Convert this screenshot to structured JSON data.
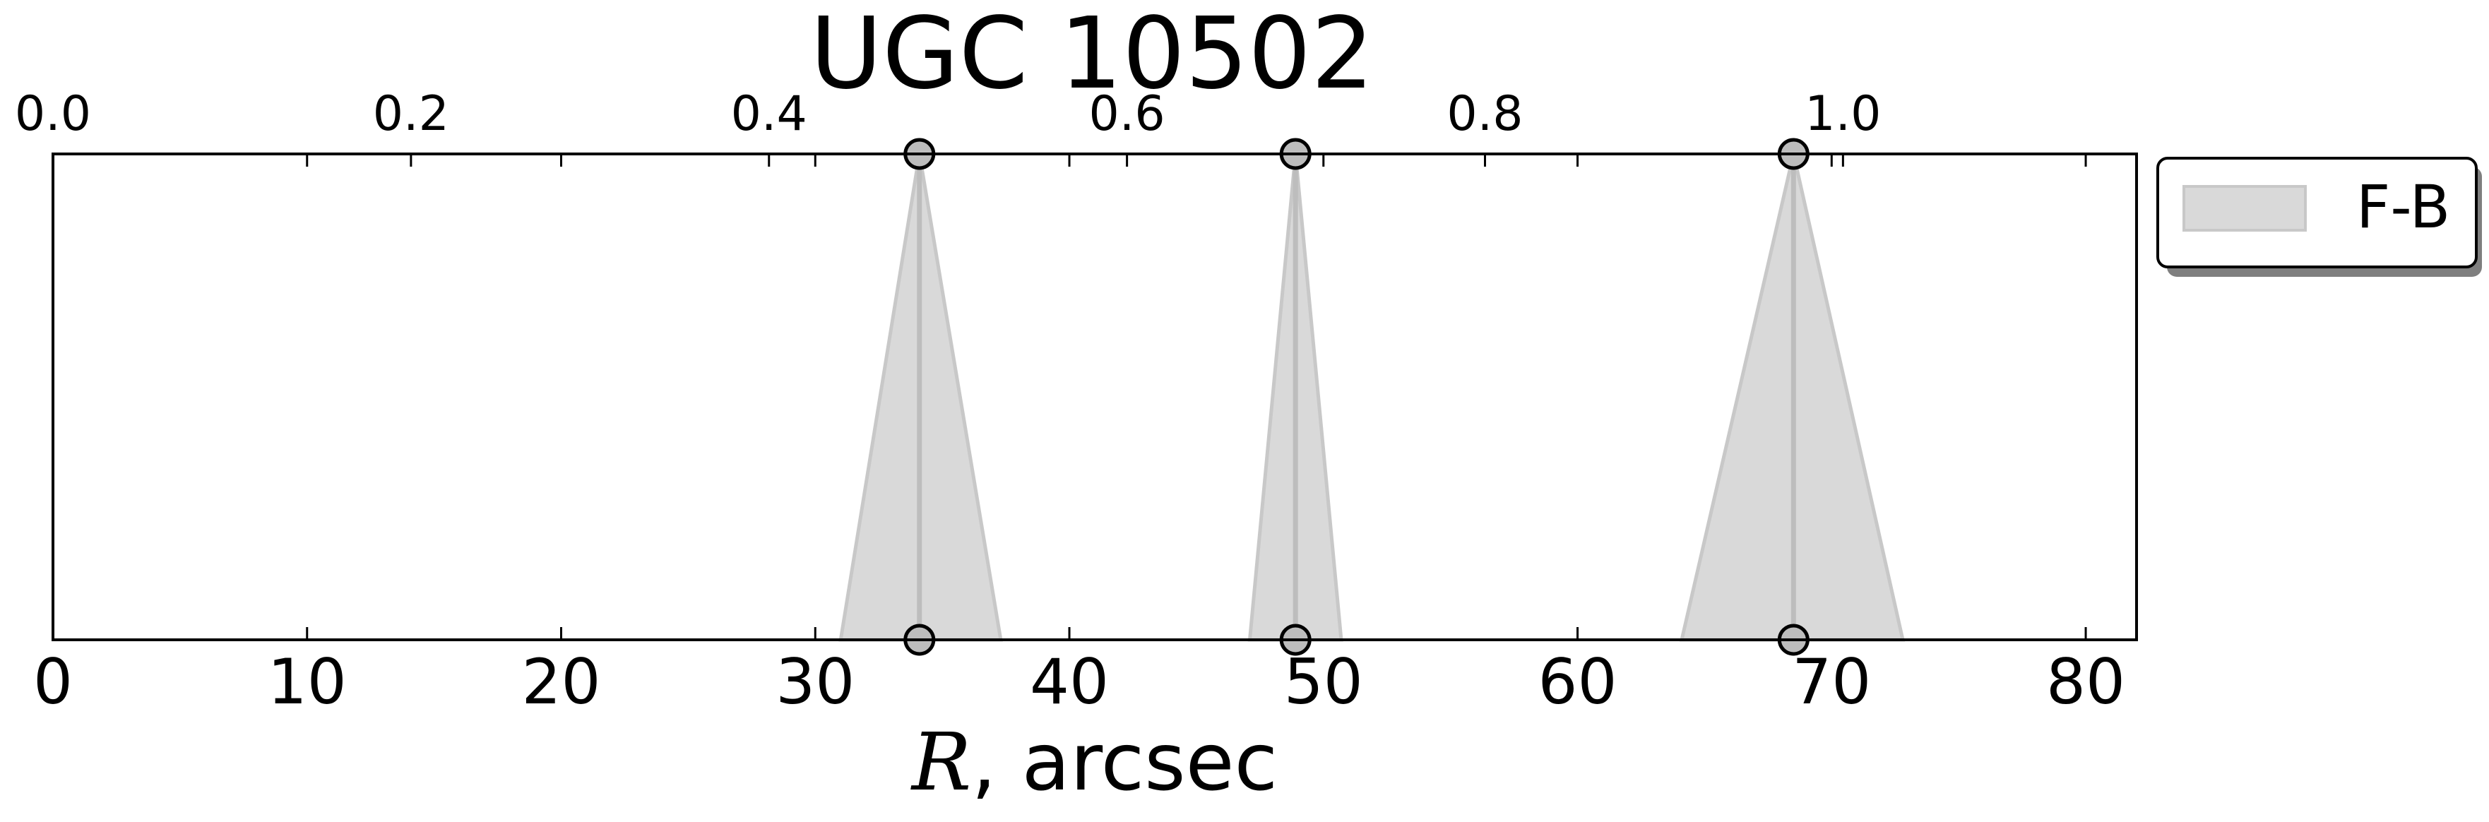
{
  "chart_data": {
    "type": "area",
    "title": "UGC 10502",
    "xlabel_var": "R",
    "xlabel_rest": ", arcsec",
    "xlim": [
      0,
      82
    ],
    "xticks": [
      "0",
      "10",
      "20",
      "30",
      "40",
      "50",
      "60",
      "70",
      "80"
    ],
    "top_xlim": [
      0,
      1.164
    ],
    "top_xticks": [
      "0.0",
      "0.2",
      "0.4",
      "0.6",
      "0.8",
      "1.0"
    ],
    "grid": false,
    "legend_position": "outside-right-top",
    "series": [
      {
        "name": "F-B",
        "color": "#d9d9d9",
        "edge_color": "#c8c8c8",
        "line_color": "#bdbdbd",
        "marker_edge": "#000000",
        "marker_face": "#bdbdbd",
        "intervals": [
          {
            "center": 34.1,
            "lower": 31.0,
            "upper": 37.3
          },
          {
            "center": 48.9,
            "lower": 47.1,
            "upper": 50.7
          },
          {
            "center": 68.5,
            "lower": 64.1,
            "upper": 72.8
          }
        ]
      }
    ]
  }
}
